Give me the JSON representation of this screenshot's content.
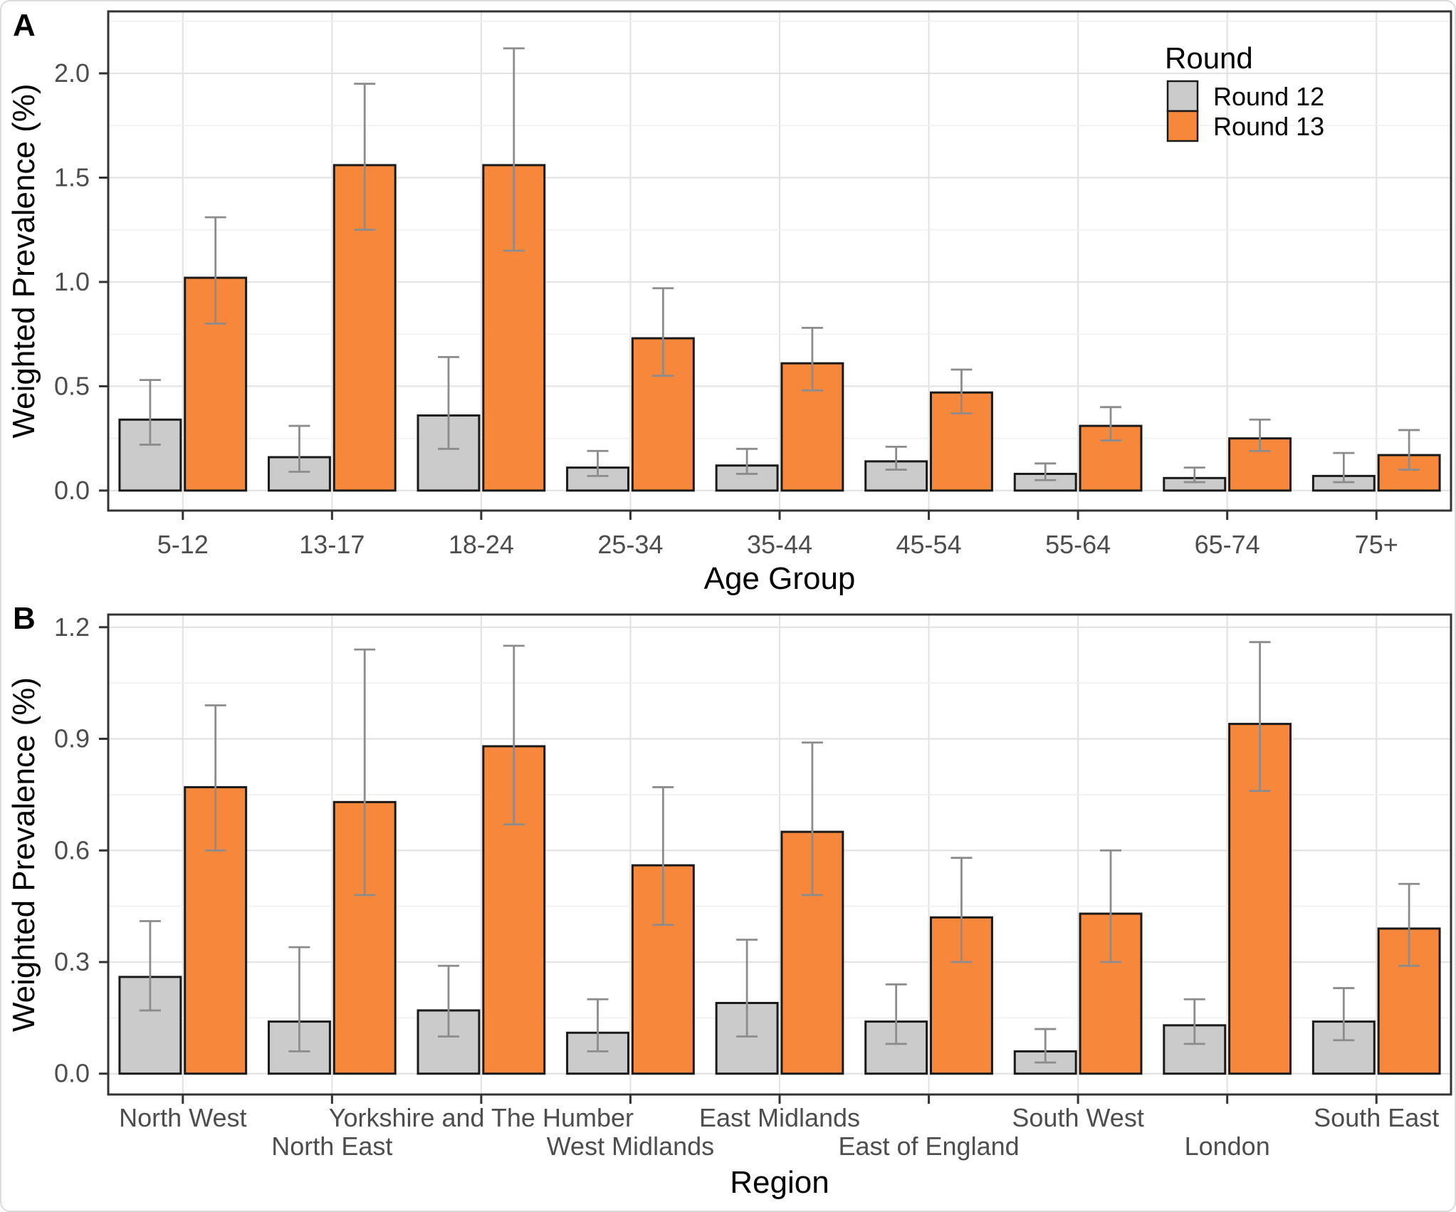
{
  "figure": {
    "panel_a_label": "A",
    "panel_b_label": "B"
  },
  "colors": {
    "round12_gray": "#CBCBCB",
    "round13_orange": "#F7883B",
    "bar_outline": "#1A1A1A",
    "errorbar_gray": "#8C8C8C",
    "panel_border": "#333333",
    "grid_major": "#E3E3E3",
    "grid_minor": "#F0F0F0",
    "tick_text": "#4D4D4D",
    "title_text": "#000000"
  },
  "chart_data": [
    {
      "panel_label": "A",
      "type": "bar",
      "title": "",
      "xlabel": "Age Group",
      "ylabel": "Weighted Prevalence (%)",
      "legend_title": "Round",
      "legend_position": "top-right-inside",
      "grid": true,
      "categories": [
        "5-12",
        "13-17",
        "18-24",
        "25-34",
        "35-44",
        "45-54",
        "55-64",
        "65-74",
        "75+"
      ],
      "label_rows": [
        0,
        0,
        0,
        0,
        0,
        0,
        0,
        0,
        0
      ],
      "yticks": [
        0,
        0.5,
        1.0,
        1.5,
        2.0
      ],
      "ytick_labels": [
        "0.0",
        "0.5",
        "1.0",
        "1.5",
        "2.0"
      ],
      "minor_step": 0.25,
      "ylim": [
        -0.096,
        2.297
      ],
      "series": [
        {
          "name": "Round 12",
          "color": "#CBCBCB",
          "values": [
            0.34,
            0.16,
            0.36,
            0.11,
            0.12,
            0.14,
            0.08,
            0.06,
            0.07
          ],
          "ci_low": [
            0.22,
            0.09,
            0.2,
            0.07,
            0.08,
            0.1,
            0.05,
            0.04,
            0.04
          ],
          "ci_high": [
            0.53,
            0.31,
            0.64,
            0.19,
            0.2,
            0.21,
            0.13,
            0.11,
            0.18
          ]
        },
        {
          "name": "Round 13",
          "color": "#F7883B",
          "values": [
            1.02,
            1.56,
            1.56,
            0.73,
            0.61,
            0.47,
            0.31,
            0.25,
            0.17
          ],
          "ci_low": [
            0.8,
            1.25,
            1.15,
            0.55,
            0.48,
            0.37,
            0.24,
            0.19,
            0.1
          ],
          "ci_high": [
            1.31,
            1.95,
            2.12,
            0.97,
            0.78,
            0.58,
            0.4,
            0.34,
            0.29
          ]
        }
      ]
    },
    {
      "panel_label": "B",
      "type": "bar",
      "title": "",
      "xlabel": "Region",
      "ylabel": "Weighted Prevalence (%)",
      "grid": true,
      "categories": [
        "North West",
        "North East",
        "Yorkshire and The Humber",
        "West Midlands",
        "East Midlands",
        "East of England",
        "South West",
        "London",
        "South East"
      ],
      "label_rows": [
        0,
        1,
        0,
        1,
        0,
        1,
        0,
        1,
        0
      ],
      "yticks": [
        0,
        0.3,
        0.6,
        0.9,
        1.2
      ],
      "ytick_labels": [
        "0.0",
        "0.3",
        "0.6",
        "0.9",
        "1.2"
      ],
      "minor_step": 0.15,
      "ylim": [
        -0.056,
        1.234
      ],
      "series": [
        {
          "name": "Round 12",
          "color": "#CBCBCB",
          "values": [
            0.26,
            0.14,
            0.17,
            0.11,
            0.19,
            0.14,
            0.06,
            0.13,
            0.14
          ],
          "ci_low": [
            0.17,
            0.06,
            0.1,
            0.06,
            0.1,
            0.08,
            0.03,
            0.08,
            0.09
          ],
          "ci_high": [
            0.41,
            0.34,
            0.29,
            0.2,
            0.36,
            0.24,
            0.12,
            0.2,
            0.23
          ]
        },
        {
          "name": "Round 13",
          "color": "#F7883B",
          "values": [
            0.77,
            0.73,
            0.88,
            0.56,
            0.65,
            0.42,
            0.43,
            0.94,
            0.39
          ],
          "ci_low": [
            0.6,
            0.48,
            0.67,
            0.4,
            0.48,
            0.3,
            0.3,
            0.76,
            0.29
          ],
          "ci_high": [
            0.99,
            1.14,
            1.15,
            0.77,
            0.89,
            0.58,
            0.6,
            1.16,
            0.51
          ]
        }
      ]
    }
  ]
}
